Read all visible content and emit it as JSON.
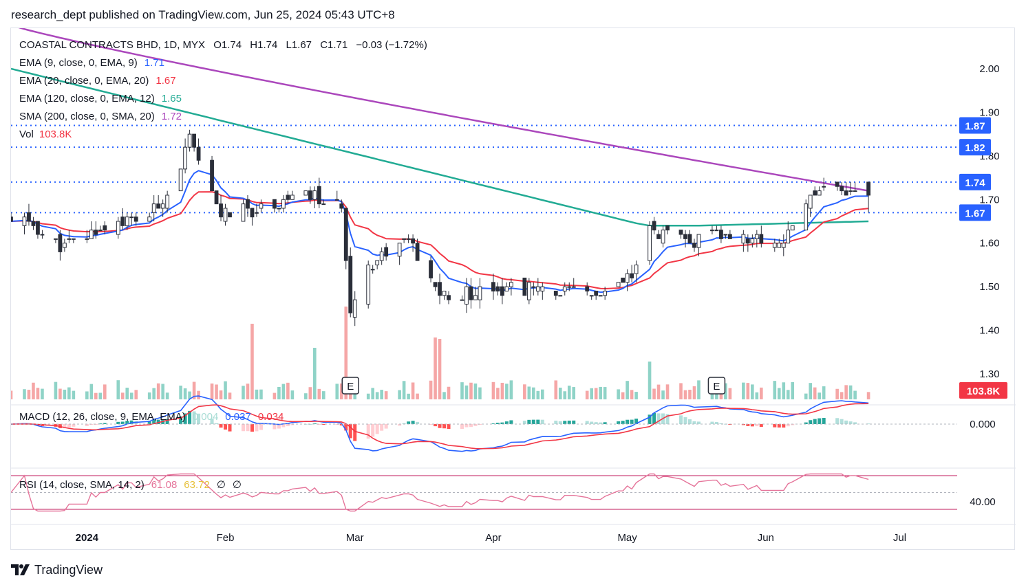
{
  "header": {
    "text": "research_dept published on TradingView.com, Jun 25, 2024 05:43 UTC+8"
  },
  "footer": {
    "brand": "TradingView",
    "logo_icon": "tradingview-logo-icon"
  },
  "legend": {
    "symbol": "COASTAL CONTRACTS BHD, 1D, MYX",
    "ohlc": [
      {
        "label": "O",
        "value": "1.74"
      },
      {
        "label": "H",
        "value": "1.74"
      },
      {
        "label": "L",
        "value": "1.67"
      },
      {
        "label": "C",
        "value": "1.71"
      }
    ],
    "change": "−0.03 (−1.72%)",
    "indicators": [
      {
        "label": "EMA (9, close, 0, EMA, 9)",
        "value": "1.71",
        "color": "#2962ff"
      },
      {
        "label": "EMA (20, close, 0, EMA, 20)",
        "value": "1.67",
        "color": "#f23645"
      },
      {
        "label": "EMA (120, close, 0, EMA, 12)",
        "value": "1.65",
        "color": "#22ab94"
      },
      {
        "label": "SMA (200, close, 0, SMA, 20)",
        "value": "1.72",
        "color": "#ab47bc"
      }
    ],
    "vol": {
      "label": "Vol",
      "value": "103.8K",
      "color": "#f23645"
    }
  },
  "macd_legend": {
    "label": "MACD (12, 26, close, 9, EMA, EMA)",
    "values": [
      {
        "value": "0.004",
        "color": "#a8dcd4"
      },
      {
        "value": "0.037",
        "color": "#2962ff"
      },
      {
        "value": "0.034",
        "color": "#f23645"
      }
    ]
  },
  "rsi_legend": {
    "label": "RSI (14, close, SMA, 14, 2)",
    "values": [
      {
        "value": "61.08",
        "color": "#e57399"
      },
      {
        "value": "63.72",
        "color": "#e8c13a"
      },
      {
        "value": "∅",
        "color": "#131722"
      },
      {
        "value": "∅",
        "color": "#131722"
      }
    ]
  },
  "colors": {
    "up": "#ffffff",
    "down": "#2a2e39",
    "wick": "#2a2e39",
    "vol_up": "#8fd3c7",
    "vol_down": "#f5a6a6",
    "hline": "#2962ff",
    "rsi": "#e57399",
    "rsi_band": "#c2185b",
    "hist_pos": "#26a69a",
    "hist_pos_light": "#b2dfdb",
    "hist_neg": "#ff5252",
    "hist_neg_light": "#ffcdd2"
  },
  "chart_data": {
    "type": "candlestick",
    "title": "COASTAL CONTRACTS BHD, 1D, MYX",
    "price_axis": {
      "ticks": [
        "2.00",
        "1.90",
        "1.80",
        "1.70",
        "1.60",
        "1.50",
        "1.40",
        "1.30"
      ],
      "range": [
        1.26,
        2.08
      ]
    },
    "time_axis": {
      "labels": [
        "2024",
        "Feb",
        "Mar",
        "Apr",
        "May",
        "Jun",
        "Jul"
      ]
    },
    "horizontal_levels": [
      {
        "value": 1.87,
        "label": "1.87"
      },
      {
        "value": 1.82,
        "label": "1.82"
      },
      {
        "value": 1.74,
        "label": "1.74"
      },
      {
        "value": 1.67,
        "label": "1.67"
      }
    ],
    "last_volume_label": "103.8K",
    "earnings_markers": [
      {
        "date": "2024-02-29",
        "label": "E"
      },
      {
        "date": "2024-05-21",
        "label": "E"
      }
    ],
    "macd_axis": {
      "ticks": [
        "0.000"
      ]
    },
    "rsi_axis": {
      "ticks": [
        "40.00"
      ]
    },
    "grid": false,
    "anchors": [
      {
        "date": "2023-12-18",
        "close": 1.65
      },
      {
        "date": "2023-12-27",
        "close": 1.59
      },
      {
        "date": "2024-01-05",
        "close": 1.64
      },
      {
        "date": "2024-01-15",
        "close": 1.66
      },
      {
        "date": "2024-01-20",
        "close": 1.73
      },
      {
        "date": "2024-01-24",
        "close": 1.84
      },
      {
        "date": "2024-01-26",
        "close": 1.78
      },
      {
        "date": "2024-01-31",
        "close": 1.67
      },
      {
        "date": "2024-02-10",
        "close": 1.68
      },
      {
        "date": "2024-02-15",
        "close": 1.7
      },
      {
        "date": "2024-02-20",
        "close": 1.71
      },
      {
        "date": "2024-02-23",
        "close": 1.69
      },
      {
        "date": "2024-02-27",
        "close": 1.69
      },
      {
        "date": "2024-02-29",
        "close": 1.45
      },
      {
        "date": "2024-03-04",
        "close": 1.55
      },
      {
        "date": "2024-03-08",
        "close": 1.58
      },
      {
        "date": "2024-03-13",
        "close": 1.61
      },
      {
        "date": "2024-03-17",
        "close": 1.52
      },
      {
        "date": "2024-03-22",
        "close": 1.47
      },
      {
        "date": "2024-04-01",
        "close": 1.5
      },
      {
        "date": "2024-04-15",
        "close": 1.49
      },
      {
        "date": "2024-04-25",
        "close": 1.48
      },
      {
        "date": "2024-05-02",
        "close": 1.52
      },
      {
        "date": "2024-05-06",
        "close": 1.63
      },
      {
        "date": "2024-05-15",
        "close": 1.6
      },
      {
        "date": "2024-05-21",
        "close": 1.62
      },
      {
        "date": "2024-05-28",
        "close": 1.61
      },
      {
        "date": "2024-06-05",
        "close": 1.6
      },
      {
        "date": "2024-06-10",
        "close": 1.7
      },
      {
        "date": "2024-06-14",
        "close": 1.74
      },
      {
        "date": "2024-06-19",
        "close": 1.72
      },
      {
        "date": "2024-06-24",
        "close": 1.71
      }
    ]
  }
}
